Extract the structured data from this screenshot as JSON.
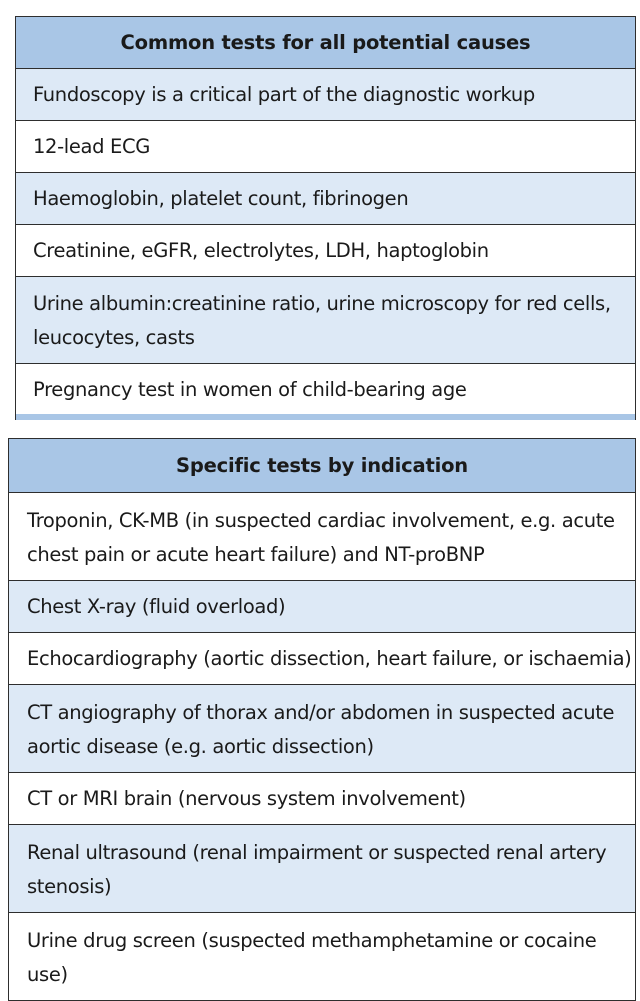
{
  "common_table": {
    "header": "Common tests for all potential causes",
    "rows": [
      "Fundoscopy is a critical part of the diagnostic workup",
      "12-lead ECG",
      "Haemoglobin, platelet count, fibrinogen",
      "Creatinine, eGFR, electrolytes, LDH, haptoglobin",
      "Urine albumin:creatinine ratio, urine microscopy for red cells, leucocytes, casts",
      "Pregnancy test in women of child-bearing age"
    ]
  },
  "specific_table": {
    "header": "Specific tests by indication",
    "rows": [
      "Troponin, CK-MB (in suspected cardiac involvement, e.g. acute chest pain or acute heart failure) and NT-proBNP",
      "Chest X-ray (fluid overload)",
      "Echocardiography (aortic dissection, heart failure, or ischaemia)",
      "CT angiography of thorax and/or abdomen in suspected acute aortic disease (e.g. aortic dissection)",
      "CT or MRI brain (nervous system involvement)",
      "Renal ultrasound (renal impairment or suspected renal artery stenosis)",
      "Urine drug screen (suspected methamphetamine or cocaine use)"
    ]
  },
  "colors": {
    "header_bg": "#a9c6e6",
    "shaded_row_bg": "#dde9f6",
    "plain_row_bg": "#ffffff",
    "border": "#2e2e2e"
  }
}
